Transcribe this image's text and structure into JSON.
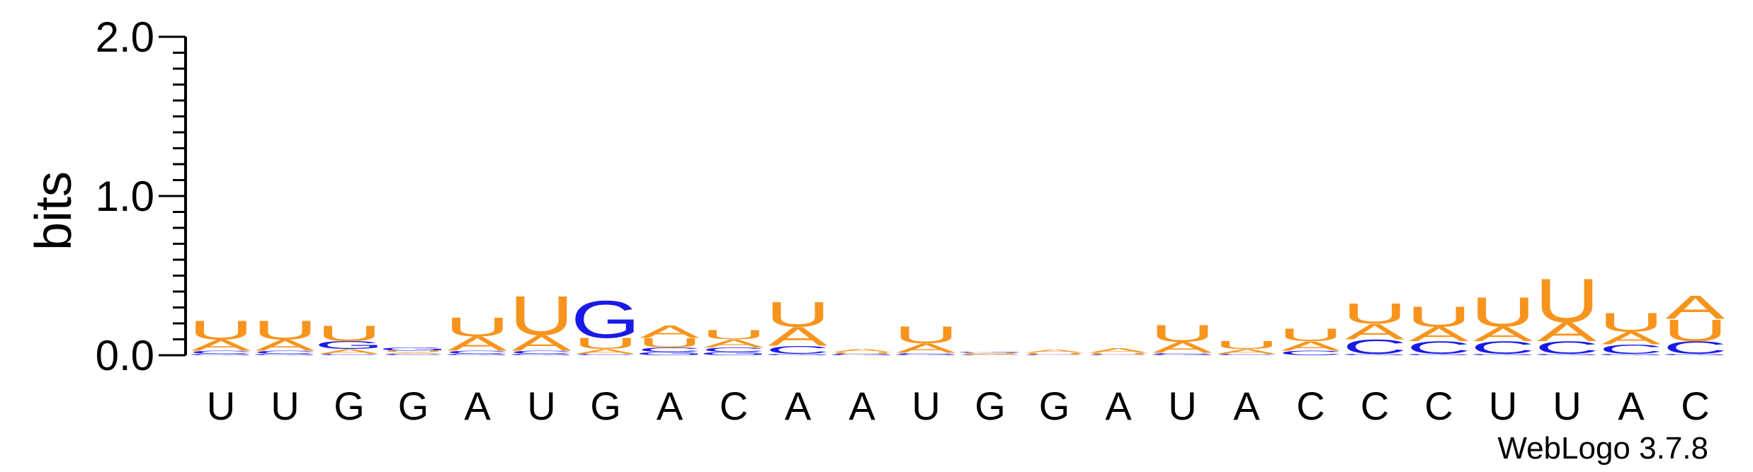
{
  "chart_data": {
    "type": "sequence-logo",
    "ylabel": "bits",
    "ylim": [
      0.0,
      2.0
    ],
    "yticks": [
      "0.0",
      "1.0",
      "2.0"
    ],
    "colors": {
      "A": "#f7941d",
      "U": "#f7941d",
      "G": "#1a1ae6",
      "C": "#1a1ae6"
    },
    "positions": [
      {
        "label": "U",
        "stack": [
          {
            "letter": "G",
            "height": 0.01
          },
          {
            "letter": "C",
            "height": 0.02
          },
          {
            "letter": "A",
            "height": 0.07
          },
          {
            "letter": "U",
            "height": 0.12
          }
        ]
      },
      {
        "label": "U",
        "stack": [
          {
            "letter": "G",
            "height": 0.01
          },
          {
            "letter": "C",
            "height": 0.02
          },
          {
            "letter": "A",
            "height": 0.07
          },
          {
            "letter": "U",
            "height": 0.12
          }
        ]
      },
      {
        "label": "G",
        "stack": [
          {
            "letter": "C",
            "height": 0.01
          },
          {
            "letter": "A",
            "height": 0.03
          },
          {
            "letter": "G",
            "height": 0.05
          },
          {
            "letter": "U",
            "height": 0.1
          }
        ]
      },
      {
        "label": "G",
        "stack": [
          {
            "letter": "C",
            "height": 0.01
          },
          {
            "letter": "A",
            "height": 0.01
          },
          {
            "letter": "U",
            "height": 0.01
          },
          {
            "letter": "G",
            "height": 0.02
          }
        ]
      },
      {
        "label": "A",
        "stack": [
          {
            "letter": "G",
            "height": 0.01
          },
          {
            "letter": "C",
            "height": 0.02
          },
          {
            "letter": "A",
            "height": 0.09
          },
          {
            "letter": "U",
            "height": 0.12
          }
        ]
      },
      {
        "label": "U",
        "stack": [
          {
            "letter": "G",
            "height": 0.01
          },
          {
            "letter": "C",
            "height": 0.02
          },
          {
            "letter": "A",
            "height": 0.1
          },
          {
            "letter": "U",
            "height": 0.25
          }
        ]
      },
      {
        "label": "G",
        "stack": [
          {
            "letter": "C",
            "height": 0.01
          },
          {
            "letter": "A",
            "height": 0.03
          },
          {
            "letter": "U",
            "height": 0.07
          },
          {
            "letter": "G",
            "height": 0.24
          }
        ]
      },
      {
        "label": "A",
        "stack": [
          {
            "letter": "G",
            "height": 0.02
          },
          {
            "letter": "C",
            "height": 0.03
          },
          {
            "letter": "U",
            "height": 0.06
          },
          {
            "letter": "A",
            "height": 0.08
          }
        ]
      },
      {
        "label": "C",
        "stack": [
          {
            "letter": "G",
            "height": 0.02
          },
          {
            "letter": "C",
            "height": 0.03
          },
          {
            "letter": "A",
            "height": 0.05
          },
          {
            "letter": "U",
            "height": 0.06
          }
        ]
      },
      {
        "label": "A",
        "stack": [
          {
            "letter": "G",
            "height": 0.01
          },
          {
            "letter": "C",
            "height": 0.05
          },
          {
            "letter": "A",
            "height": 0.12
          },
          {
            "letter": "U",
            "height": 0.16
          }
        ]
      },
      {
        "label": "A",
        "stack": [
          {
            "letter": "G",
            "height": 0.005
          },
          {
            "letter": "C",
            "height": 0.005
          },
          {
            "letter": "U",
            "height": 0.01
          },
          {
            "letter": "A",
            "height": 0.02
          }
        ]
      },
      {
        "label": "U",
        "stack": [
          {
            "letter": "G",
            "height": 0.005
          },
          {
            "letter": "C",
            "height": 0.01
          },
          {
            "letter": "A",
            "height": 0.06
          },
          {
            "letter": "U",
            "height": 0.11
          }
        ]
      },
      {
        "label": "G",
        "stack": [
          {
            "letter": "C",
            "height": 0.005
          },
          {
            "letter": "A",
            "height": 0.005
          },
          {
            "letter": "U",
            "height": 0.005
          },
          {
            "letter": "G",
            "height": 0.005
          }
        ]
      },
      {
        "label": "G",
        "stack": [
          {
            "letter": "C",
            "height": 0.005
          },
          {
            "letter": "U",
            "height": 0.01
          },
          {
            "letter": "A",
            "height": 0.02
          }
        ]
      },
      {
        "label": "A",
        "stack": [
          {
            "letter": "C",
            "height": 0.005
          },
          {
            "letter": "U",
            "height": 0.01
          },
          {
            "letter": "A",
            "height": 0.03
          }
        ]
      },
      {
        "label": "U",
        "stack": [
          {
            "letter": "G",
            "height": 0.005
          },
          {
            "letter": "C",
            "height": 0.01
          },
          {
            "letter": "A",
            "height": 0.07
          },
          {
            "letter": "U",
            "height": 0.11
          }
        ]
      },
      {
        "label": "A",
        "stack": [
          {
            "letter": "C",
            "height": 0.01
          },
          {
            "letter": "A",
            "height": 0.03
          },
          {
            "letter": "U",
            "height": 0.05
          }
        ]
      },
      {
        "label": "C",
        "stack": [
          {
            "letter": "C",
            "height": 0.03
          },
          {
            "letter": "A",
            "height": 0.06
          },
          {
            "letter": "U",
            "height": 0.08
          }
        ]
      },
      {
        "label": "C",
        "stack": [
          {
            "letter": "G",
            "height": 0.01
          },
          {
            "letter": "C",
            "height": 0.09
          },
          {
            "letter": "A",
            "height": 0.1
          },
          {
            "letter": "U",
            "height": 0.13
          }
        ]
      },
      {
        "label": "C",
        "stack": [
          {
            "letter": "G",
            "height": 0.01
          },
          {
            "letter": "C",
            "height": 0.08
          },
          {
            "letter": "A",
            "height": 0.09
          },
          {
            "letter": "U",
            "height": 0.13
          }
        ]
      },
      {
        "label": "U",
        "stack": [
          {
            "letter": "G",
            "height": 0.01
          },
          {
            "letter": "C",
            "height": 0.08
          },
          {
            "letter": "A",
            "height": 0.09
          },
          {
            "letter": "U",
            "height": 0.19
          }
        ]
      },
      {
        "label": "U",
        "stack": [
          {
            "letter": "G",
            "height": 0.01
          },
          {
            "letter": "C",
            "height": 0.08
          },
          {
            "letter": "A",
            "height": 0.12
          },
          {
            "letter": "U",
            "height": 0.28
          }
        ]
      },
      {
        "label": "A",
        "stack": [
          {
            "letter": "G",
            "height": 0.01
          },
          {
            "letter": "C",
            "height": 0.06
          },
          {
            "letter": "A",
            "height": 0.08
          },
          {
            "letter": "U",
            "height": 0.12
          }
        ]
      },
      {
        "label": "C",
        "stack": [
          {
            "letter": "G",
            "height": 0.01
          },
          {
            "letter": "C",
            "height": 0.08
          },
          {
            "letter": "U",
            "height": 0.14
          },
          {
            "letter": "A",
            "height": 0.15
          }
        ]
      }
    ],
    "credit": "WebLogo 3.7.8"
  }
}
